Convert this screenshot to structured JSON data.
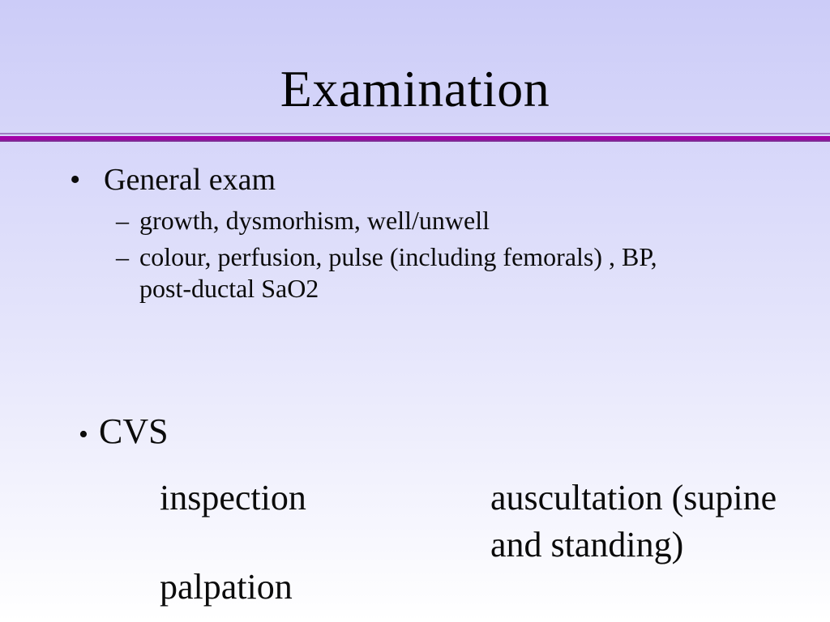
{
  "slide": {
    "title": "Examination",
    "background": {
      "top_color": "#ccccf8",
      "bottom_color": "#ffffff"
    },
    "separator": {
      "thin_color": "#a07cc4",
      "thick_color": "#a303a8",
      "dark_color": "#7e2a94"
    },
    "general_exam": {
      "marker": "•",
      "label": "General exam",
      "sub_lines": [
        {
          "marker": "–",
          "text": "growth, dysmorhism, well/unwell"
        },
        {
          "marker": "–",
          "text": "colour, perfusion, pulse (including femorals) , BP,"
        },
        {
          "marker": "",
          "text": "post-ductal SaO2"
        }
      ]
    },
    "cvs": {
      "marker": "•",
      "label": "CVS"
    },
    "cvs_items": {
      "left_column": [
        "inspection",
        "palpation"
      ],
      "right_column": [
        "auscultation (supine and standing)"
      ]
    }
  }
}
